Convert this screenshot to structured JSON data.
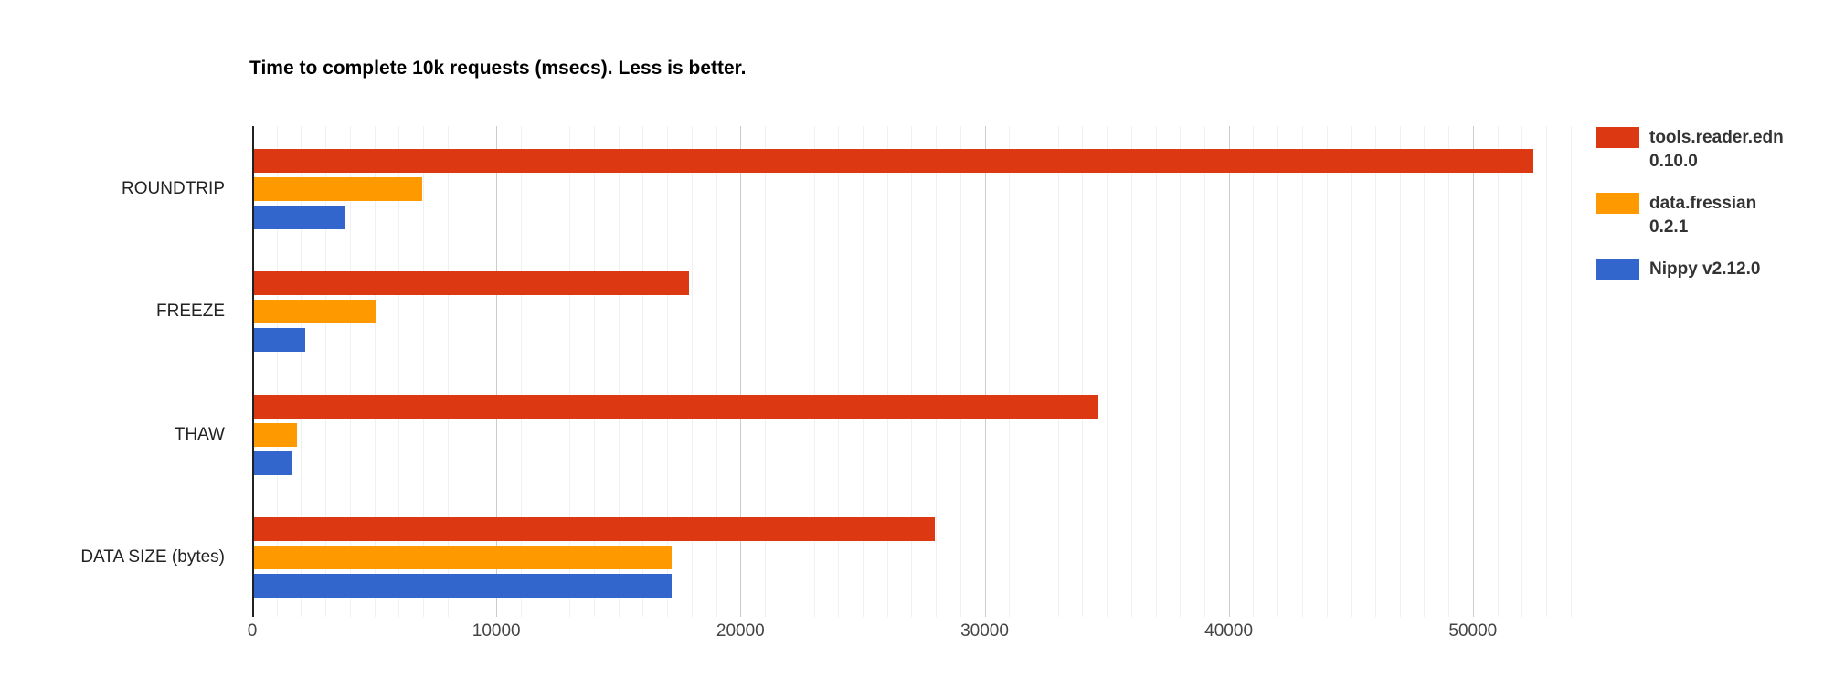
{
  "chart_data": {
    "type": "bar",
    "orientation": "horizontal",
    "title": "Time to complete 10k requests (msecs). Less is better.",
    "categories": [
      "ROUNDTRIP",
      "FREEZE",
      "THAW",
      "DATA SIZE (bytes)"
    ],
    "series": [
      {
        "name": "tools.reader.edn 0.10.0",
        "legend_lines": [
          "tools.reader.edn",
          "0.10.0"
        ],
        "color": "#dc3912",
        "values": [
          52400,
          17800,
          34600,
          27900
        ]
      },
      {
        "name": "data.fressian 0.2.1",
        "legend_lines": [
          "data.fressian",
          "0.2.1"
        ],
        "color": "#ff9900",
        "values": [
          6900,
          5000,
          1750,
          17100
        ]
      },
      {
        "name": "Nippy v2.12.0",
        "legend_lines": [
          "Nippy v2.12.0"
        ],
        "color": "#3366cc",
        "values": [
          3700,
          2100,
          1520,
          17100
        ]
      }
    ],
    "x_axis": {
      "ticks": [
        0,
        10000,
        20000,
        30000,
        40000,
        50000
      ],
      "tick_labels": [
        "0",
        "10000",
        "20000",
        "30000",
        "40000",
        "50000"
      ],
      "range": [
        0,
        54800
      ],
      "minor_gridline_step": 1000,
      "major_gridline_step": 10000
    },
    "xlabel": "",
    "ylabel": "",
    "grid": true,
    "legend_position": "right"
  }
}
